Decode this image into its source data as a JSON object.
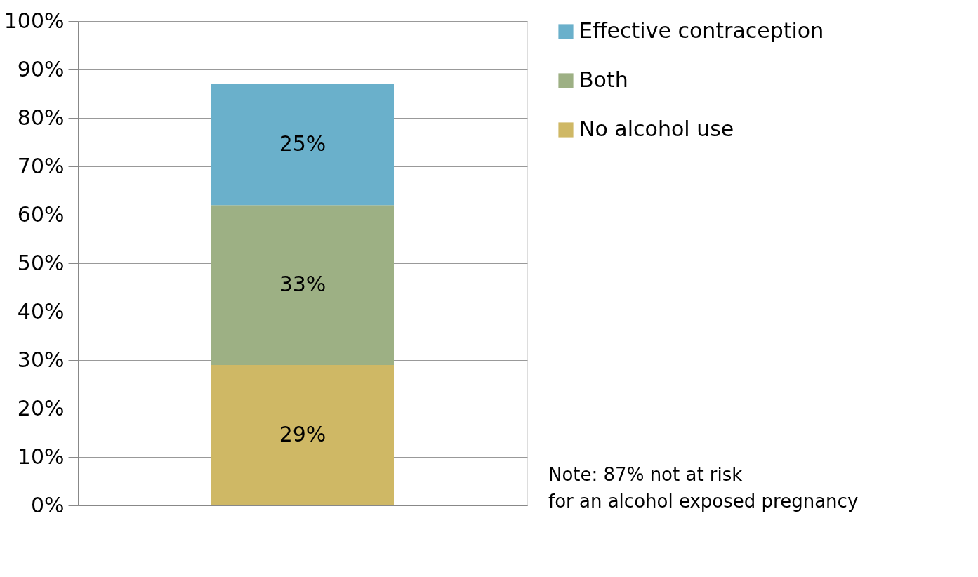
{
  "chart_data": {
    "type": "bar",
    "stacked": true,
    "categories": [
      null
    ],
    "series": [
      {
        "name": "No alcohol use",
        "color": "#cfb865",
        "values": [
          29
        ],
        "value_labels": [
          "29%"
        ]
      },
      {
        "name": "Both",
        "color": "#9db084",
        "values": [
          33
        ],
        "value_labels": [
          "33%"
        ]
      },
      {
        "name": "Effective contraception",
        "color": "#6ab0cb",
        "values": [
          25
        ],
        "value_labels": [
          "25%"
        ]
      }
    ],
    "ylim": [
      0,
      100
    ],
    "yticks": [
      {
        "value": 0,
        "label": "0%"
      },
      {
        "value": 10,
        "label": "10%"
      },
      {
        "value": 20,
        "label": "20%"
      },
      {
        "value": 30,
        "label": "30%"
      },
      {
        "value": 40,
        "label": "40%"
      },
      {
        "value": 50,
        "label": "50%"
      },
      {
        "value": 60,
        "label": "60%"
      },
      {
        "value": 70,
        "label": "70%"
      },
      {
        "value": 80,
        "label": "80%"
      },
      {
        "value": 90,
        "label": "90%"
      },
      {
        "value": 100,
        "label": "100%"
      }
    ],
    "grid": "y",
    "legend": "right",
    "annotations": [
      "Note: 87% not at risk for an alcohol exposed pregnancy"
    ]
  }
}
